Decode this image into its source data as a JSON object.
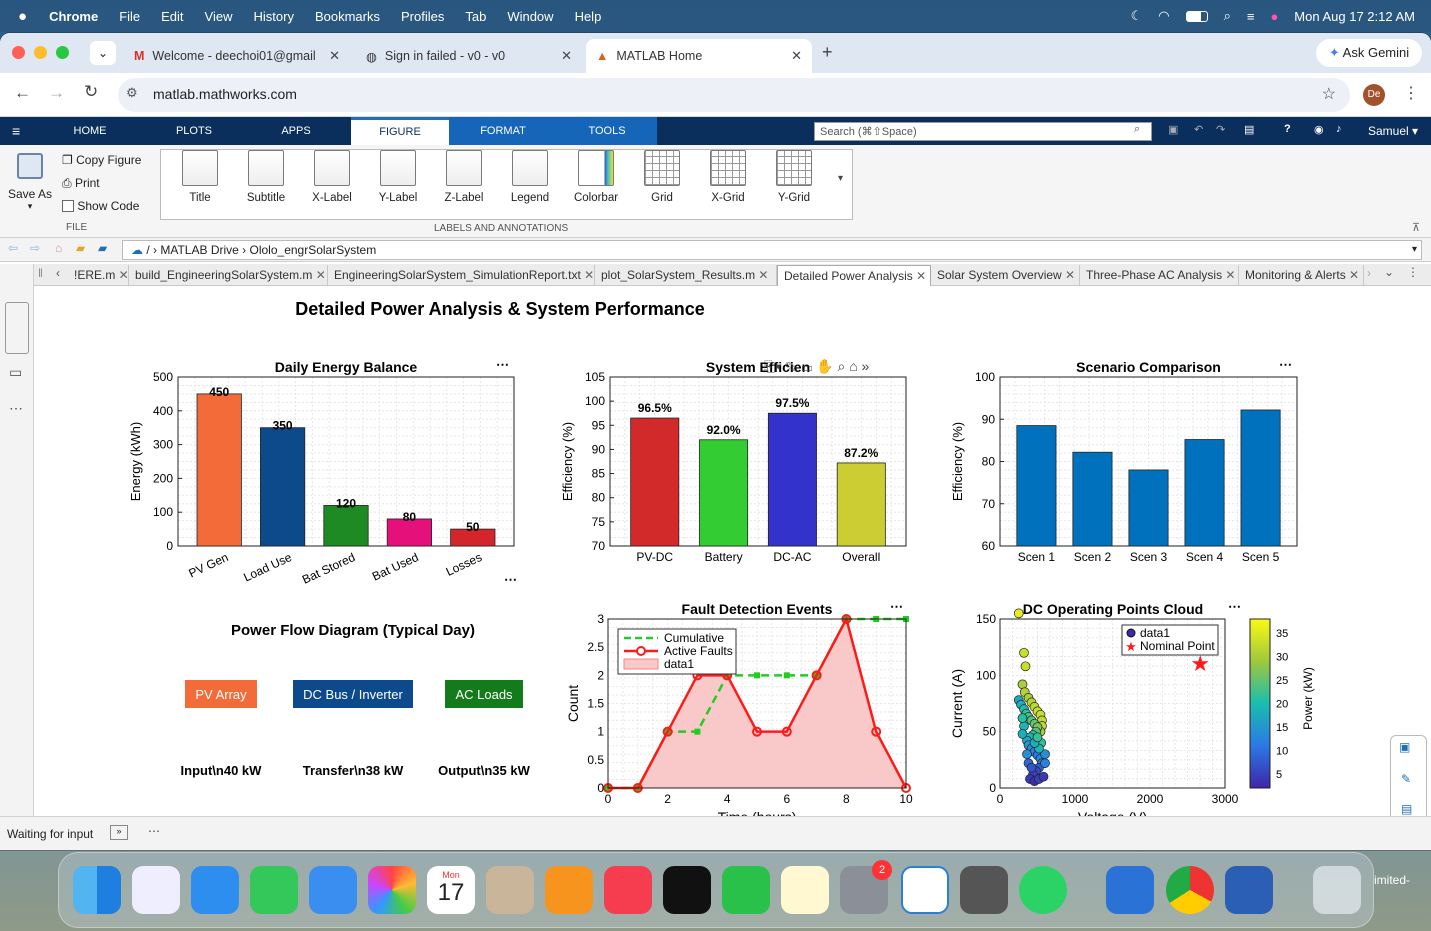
{
  "menubar": {
    "app": "Chrome",
    "items": [
      "File",
      "Edit",
      "View",
      "History",
      "Bookmarks",
      "Profiles",
      "Tab",
      "Window",
      "Help"
    ],
    "clock": "Mon Aug 17  2:12 AM"
  },
  "browser": {
    "tabs": [
      {
        "title": "Welcome - deechoi01@gmail"
      },
      {
        "title": "Sign in failed - v0 - v0"
      },
      {
        "title": "MATLAB Home"
      }
    ],
    "new_tab": "+",
    "gemini": "Ask Gemini",
    "url": "matlab.mathworks.com",
    "profile": "De"
  },
  "matlab": {
    "tabs": [
      "HOME",
      "PLOTS",
      "APPS",
      "FIGURE",
      "FORMAT",
      "TOOLS"
    ],
    "search_placeholder": "Search (⌘⇧Space)",
    "user": "Samuel",
    "file": {
      "save_as": "Save As",
      "copy_figure": "Copy Figure",
      "print": "Print",
      "show_code": "Show Code",
      "section": "FILE"
    },
    "labels": {
      "buttons": [
        "Title",
        "Subtitle",
        "X-Label",
        "Y-Label",
        "Z-Label",
        "Legend",
        "Colorbar",
        "Grid",
        "X-Grid",
        "Y-Grid"
      ],
      "section": "LABELS AND ANNOTATIONS"
    },
    "path": [
      "MATLAB Drive",
      "Ololo_engrSolarSystem"
    ],
    "path_sep": "/",
    "editor_tabs": [
      "!ERE.m",
      "build_EngineeringSolarSystem.m",
      "EngineeringSolarSystem_SimulationReport.txt",
      "plot_SolarSystem_Results.m",
      "Detailed Power Analysis",
      "Solar System Overview",
      "Three-Phase AC Analysis",
      "Monitoring & Alerts"
    ],
    "status": "Waiting for input"
  },
  "figure": {
    "title": "Detailed Power Analysis & System Performance",
    "flow": {
      "title": "Power Flow Diagram (Typical Day)",
      "blocks": [
        {
          "label": "PV Array",
          "color": "#f26b38"
        },
        {
          "label": "DC Bus / Inverter",
          "color": "#0d4a8c"
        },
        {
          "label": "AC Loads",
          "color": "#137b1c"
        }
      ],
      "captions": [
        "Input\\n40 kW",
        "Transfer\\n38 kW",
        "Output\\n35 kW"
      ]
    }
  },
  "chart_data": [
    {
      "type": "bar",
      "title": "Daily Energy Balance",
      "ylabel": "Energy (kWh)",
      "ylim": [
        0,
        500
      ],
      "yticks": [
        0,
        100,
        200,
        300,
        400,
        500
      ],
      "categories": [
        "PV Gen",
        "Load Use",
        "Bat Stored",
        "Bat Used",
        "Losses"
      ],
      "values": [
        450,
        350,
        120,
        80,
        50
      ],
      "colors": [
        "#f26b38",
        "#0d4a8c",
        "#1d8a23",
        "#e6107a",
        "#d4262a"
      ],
      "grid": true
    },
    {
      "type": "bar",
      "title": "System Efficien",
      "ylabel": "Efficiency (%)",
      "ylim": [
        70,
        105
      ],
      "yticks": [
        70,
        75,
        80,
        85,
        90,
        95,
        100,
        105
      ],
      "categories": [
        "PV-DC",
        "Battery",
        "DC-AC",
        "Overall"
      ],
      "values": [
        96.5,
        92.0,
        97.5,
        87.2
      ],
      "data_labels": [
        "96.5%",
        "92.0%",
        "97.5%",
        "87.2%"
      ],
      "colors": [
        "#d22a2a",
        "#33cc33",
        "#3333cc",
        "#cccc33"
      ],
      "grid": true
    },
    {
      "type": "bar",
      "title": "Scenario Comparison",
      "ylabel": "Efficiency (%)",
      "ylim": [
        60,
        100
      ],
      "yticks": [
        60,
        70,
        80,
        90,
        100
      ],
      "categories": [
        "Scen 1",
        "Scen 2",
        "Scen 3",
        "Scen 4",
        "Scen 5"
      ],
      "values": [
        88.5,
        82.2,
        78.0,
        85.2,
        92.2
      ],
      "colors": [
        "#0072bd"
      ],
      "grid": true
    },
    {
      "type": "line",
      "title": "Fault Detection Events",
      "xlabel": "Time (hours)",
      "ylabel": "Count",
      "xlim": [
        0,
        10
      ],
      "ylim": [
        0,
        3
      ],
      "xticks": [
        0,
        2,
        4,
        6,
        8,
        10
      ],
      "yticks": [
        0,
        0.5,
        1,
        1.5,
        2,
        2.5,
        3
      ],
      "x": [
        0,
        1,
        2,
        3,
        4,
        5,
        6,
        7,
        8,
        9,
        10
      ],
      "series": [
        {
          "name": "Cumulative",
          "values": [
            0,
            0,
            1,
            1,
            2,
            2,
            2,
            2,
            3,
            3,
            3
          ],
          "color": "#22cc22",
          "style": "dashed"
        },
        {
          "name": "Active Faults",
          "values": [
            0,
            0,
            1,
            2,
            2,
            1,
            1,
            2,
            3,
            1,
            0
          ],
          "color": "#ff1a1a",
          "style": "solid"
        },
        {
          "name": "data1",
          "values": [
            0,
            0,
            1,
            2,
            2,
            1,
            1,
            2,
            3,
            1,
            0
          ],
          "color": "#f9c8c8",
          "style": "area"
        }
      ],
      "legend": "top-left",
      "grid": true
    },
    {
      "type": "scatter",
      "title": "DC Operating Points Cloud",
      "xlabel": "Voltage (V)",
      "ylabel": "Current (A)",
      "xlim": [
        0,
        3000
      ],
      "ylim": [
        0,
        150
      ],
      "xticks": [
        0,
        1000,
        2000,
        3000
      ],
      "yticks": [
        0,
        50,
        100,
        150
      ],
      "colorbar_label": "Power (kW)",
      "colorbar_ticks": [
        5,
        10,
        15,
        20,
        25,
        30,
        35
      ],
      "series": [
        {
          "name": "data1"
        },
        {
          "name": "Nominal Point",
          "x": [
            2670
          ],
          "y": [
            110
          ],
          "color": "#ff1a1a"
        }
      ],
      "legend": "top-right",
      "grid": true,
      "points": [
        [
          250,
          155,
          36
        ],
        [
          320,
          120,
          33
        ],
        [
          340,
          108,
          33
        ],
        [
          300,
          92,
          30
        ],
        [
          330,
          85,
          31
        ],
        [
          380,
          80,
          30
        ],
        [
          420,
          76,
          31
        ],
        [
          460,
          72,
          32
        ],
        [
          500,
          68,
          33
        ],
        [
          540,
          65,
          33
        ],
        [
          560,
          60,
          32
        ],
        [
          560,
          55,
          32
        ],
        [
          540,
          50,
          30
        ],
        [
          250,
          78,
          17
        ],
        [
          280,
          74,
          18
        ],
        [
          320,
          70,
          20
        ],
        [
          350,
          66,
          22
        ],
        [
          380,
          63,
          23
        ],
        [
          420,
          60,
          24
        ],
        [
          460,
          57,
          25
        ],
        [
          500,
          54,
          26
        ],
        [
          480,
          50,
          24
        ],
        [
          440,
          47,
          21
        ],
        [
          400,
          45,
          19
        ],
        [
          360,
          42,
          17
        ],
        [
          380,
          38,
          15
        ],
        [
          420,
          35,
          13
        ],
        [
          460,
          32,
          12
        ],
        [
          500,
          29,
          11
        ],
        [
          540,
          26,
          13
        ],
        [
          560,
          22,
          11
        ],
        [
          520,
          18,
          8
        ],
        [
          480,
          15,
          6
        ],
        [
          440,
          12,
          5
        ],
        [
          400,
          8,
          4
        ],
        [
          460,
          6,
          3
        ],
        [
          520,
          8,
          5
        ],
        [
          580,
          10,
          4
        ],
        [
          600,
          30,
          14
        ],
        [
          320,
          55,
          19
        ],
        [
          300,
          48,
          18
        ],
        [
          360,
          30,
          14
        ],
        [
          380,
          22,
          9
        ],
        [
          420,
          18,
          7
        ],
        [
          550,
          40,
          22
        ],
        [
          520,
          35,
          19
        ],
        [
          600,
          22,
          12
        ],
        [
          300,
          62,
          21
        ],
        [
          460,
          40,
          18
        ],
        [
          500,
          45,
          22
        ]
      ]
    }
  ],
  "dock": {
    "calendar_month": "Mon",
    "calendar_day": "17",
    "settings_badge": "2",
    "trash_label": "imited-"
  }
}
